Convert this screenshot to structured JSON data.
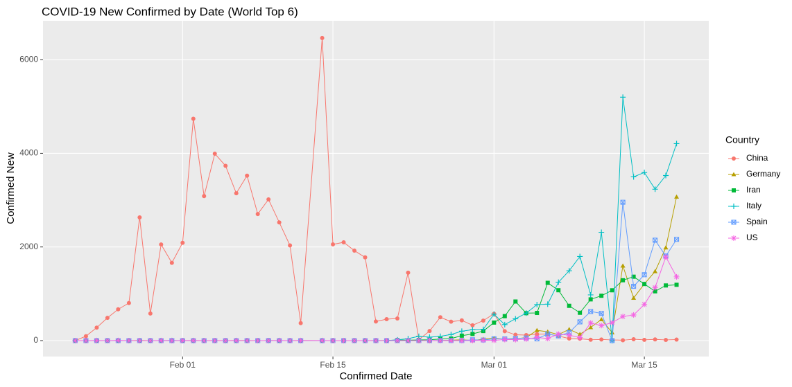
{
  "chart_data": {
    "type": "line",
    "title": "COVID-19 New Confirmed by Date (World Top 6)",
    "x_label": "Confirmed Date",
    "y_label": "Confirmed New",
    "legend_title": "Country",
    "legend": "right",
    "grid": true,
    "x": [
      "Jan 22",
      "Jan 23",
      "Jan 24",
      "Jan 25",
      "Jan 26",
      "Jan 27",
      "Jan 28",
      "Jan 29",
      "Jan 30",
      "Jan 31",
      "Feb 01",
      "Feb 02",
      "Feb 03",
      "Feb 04",
      "Feb 05",
      "Feb 06",
      "Feb 07",
      "Feb 08",
      "Feb 09",
      "Feb 10",
      "Feb 11",
      "Feb 12",
      "Feb 14",
      "Feb 15",
      "Feb 16",
      "Feb 17",
      "Feb 18",
      "Feb 19",
      "Feb 20",
      "Feb 21",
      "Feb 22",
      "Feb 23",
      "Feb 24",
      "Feb 25",
      "Feb 26",
      "Feb 27",
      "Feb 28",
      "Feb 29",
      "Mar 01",
      "Mar 02",
      "Mar 03",
      "Mar 04",
      "Mar 05",
      "Mar 06",
      "Mar 07",
      "Mar 08",
      "Mar 09",
      "Mar 10",
      "Mar 11",
      "Mar 12",
      "Mar 13",
      "Mar 14",
      "Mar 15",
      "Mar 16",
      "Mar 17",
      "Mar 18"
    ],
    "xlim": [
      "Jan 19",
      "Mar 21"
    ],
    "xticks": [
      "Feb 01",
      "Feb 15",
      "Mar 01",
      "Mar 15"
    ],
    "ylim": [
      -340,
      6830
    ],
    "yticks": [
      0,
      2000,
      4000,
      6000
    ],
    "series": [
      {
        "name": "China",
        "color": "#F8766D",
        "values": [
          0,
          95,
          277,
          486,
          669,
          802,
          2632,
          578,
          2054,
          1661,
          2089,
          4739,
          3086,
          3991,
          3733,
          3147,
          3523,
          2704,
          3015,
          2525,
          2032,
          373,
          6463,
          2055,
          2100,
          1921,
          1777,
          408,
          458,
          473,
          1451,
          21,
          205,
          499,
          405,
          433,
          327,
          427,
          573,
          202,
          125,
          119,
          139,
          143,
          99,
          44,
          40,
          19,
          24,
          15,
          8,
          30,
          16,
          26,
          14,
          22
        ]
      },
      {
        "name": "Germany",
        "color": "#B79F00",
        "values": [
          0,
          0,
          0,
          0,
          0,
          0,
          4,
          0,
          0,
          1,
          0,
          2,
          0,
          2,
          0,
          2,
          1,
          0,
          1,
          0,
          0,
          2,
          0,
          0,
          0,
          0,
          0,
          0,
          0,
          0,
          0,
          0,
          0,
          1,
          10,
          19,
          2,
          31,
          51,
          29,
          37,
          66,
          220,
          188,
          129,
          241,
          136,
          281,
          451,
          170,
          1597,
          910,
          1210,
          1477,
          1985,
          3070
        ]
      },
      {
        "name": "Iran",
        "color": "#00BA38",
        "values": [
          0,
          0,
          0,
          0,
          0,
          0,
          0,
          0,
          0,
          0,
          0,
          0,
          0,
          0,
          0,
          0,
          0,
          0,
          0,
          0,
          0,
          0,
          0,
          0,
          0,
          0,
          0,
          2,
          3,
          13,
          10,
          15,
          18,
          34,
          44,
          106,
          143,
          205,
          385,
          523,
          835,
          586,
          591,
          1234,
          1076,
          743,
          595,
          881,
          958,
          1075,
          1289,
          1365,
          1209,
          1053,
          1178,
          1192
        ]
      },
      {
        "name": "Italy",
        "color": "#00BFC4",
        "values": [
          0,
          0,
          0,
          0,
          0,
          0,
          0,
          0,
          0,
          2,
          0,
          0,
          0,
          0,
          0,
          0,
          0,
          0,
          0,
          0,
          0,
          0,
          0,
          0,
          0,
          0,
          0,
          0,
          0,
          17,
          42,
          93,
          74,
          93,
          131,
          202,
          233,
          240,
          566,
          342,
          466,
          587,
          769,
          778,
          1247,
          1492,
          1797,
          977,
          2313,
          0,
          5198,
          3497,
          3590,
          3233,
          3526,
          4207
        ]
      },
      {
        "name": "Spain",
        "color": "#619CFF",
        "values": [
          0,
          0,
          0,
          0,
          0,
          0,
          0,
          0,
          0,
          1,
          0,
          0,
          0,
          0,
          0,
          0,
          0,
          0,
          1,
          0,
          0,
          0,
          0,
          0,
          0,
          0,
          0,
          0,
          0,
          0,
          0,
          0,
          0,
          4,
          3,
          2,
          17,
          13,
          39,
          36,
          45,
          57,
          37,
          141,
          100,
          173,
          400,
          622,
          582,
          0,
          2955,
          1159,
          1407,
          2144,
          1806,
          2162
        ]
      },
      {
        "name": "US",
        "color": "#F564E3",
        "values": [
          0,
          0,
          1,
          0,
          3,
          0,
          0,
          0,
          1,
          0,
          1,
          1,
          0,
          0,
          0,
          1,
          0,
          0,
          0,
          1,
          0,
          1,
          1,
          0,
          0,
          0,
          0,
          0,
          0,
          2,
          0,
          0,
          0,
          0,
          1,
          0,
          1,
          8,
          6,
          23,
          20,
          31,
          68,
          45,
          140,
          116,
          65,
          376,
          322,
          382,
          516,
          548,
          772,
          1133,
          1789,
          1362
        ]
      }
    ]
  }
}
